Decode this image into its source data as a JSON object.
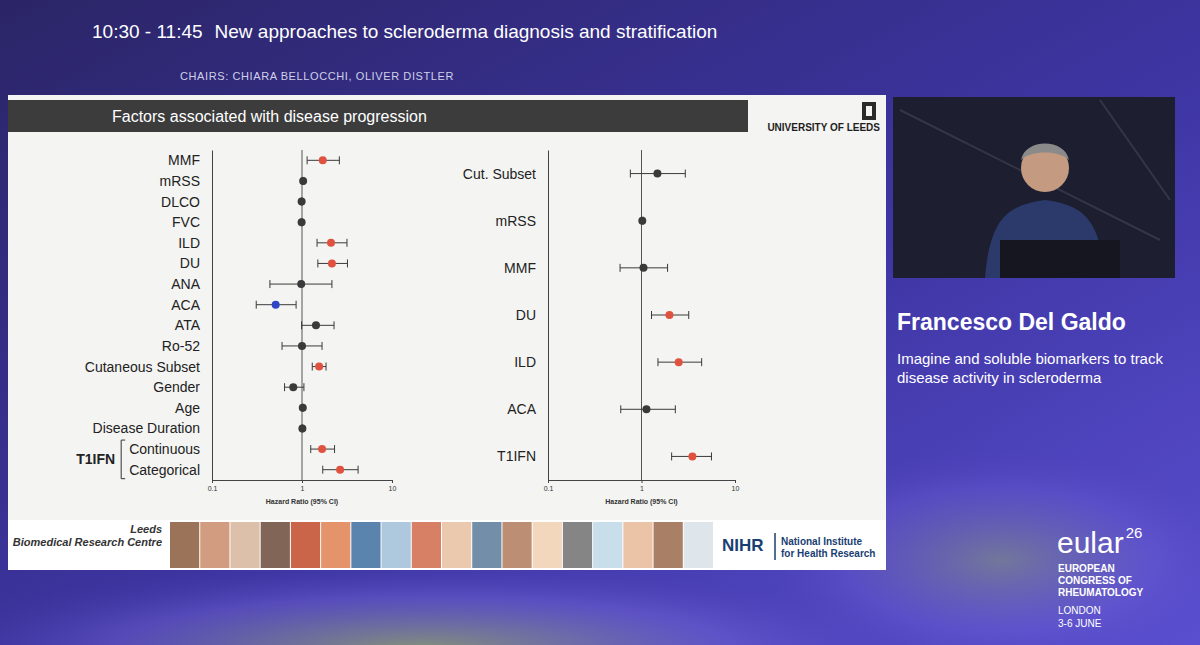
{
  "slide": {
    "session": "10:30 - 11:45",
    "session_title": "New approaches to scleroderma diagnosis and stratification",
    "chairs": "CHAIRS: CHIARA BELLOCCHI, OLIVER DISTLER",
    "panel_title": "Factors associated with disease progression",
    "institution": "UNIVERSITY OF LEEDS",
    "footer_left": [
      "Leeds",
      "Biomedical Research Centre"
    ],
    "footer_logo": "NIHR",
    "footer_logo_text": [
      "National Institute",
      "for Health Research"
    ]
  },
  "speaker": {
    "name": "Francesco Del Galdo",
    "talk_title": "Imagine and soluble biomarkers to track disease activity in scleroderma"
  },
  "congress": {
    "brand": "eular",
    "year": "26",
    "lines": [
      "EUROPEAN",
      "CONGRESS OF",
      "RHEUMATOLOGY"
    ],
    "city": "LONDON",
    "dates": "3-6 JUNE"
  },
  "chart_data": [
    {
      "type": "forest",
      "orientation": "horizontal",
      "log": "x",
      "categories": [
        "MMF",
        "mRSS",
        "DLCO",
        "FVC",
        "ILD",
        "DU",
        "ANA",
        "ACA",
        "ATA",
        "Ro-52",
        "Cutaneous Subset",
        "Gender",
        "Age",
        "Disease Duration",
        "Continuous",
        "Categorical"
      ],
      "values": [
        1.7,
        1.03,
        0.99,
        0.99,
        2.1,
        2.15,
        0.98,
        0.51,
        1.43,
        1.0,
        1.55,
        0.8,
        1.02,
        1.01,
        1.67,
        2.65
      ],
      "ci_low": [
        1.14,
        1.01,
        0.98,
        0.98,
        1.47,
        1.5,
        0.44,
        0.31,
        0.99,
        0.6,
        1.3,
        0.64,
        1.01,
        1.0,
        1.25,
        1.7
      ],
      "ci_high": [
        2.6,
        1.05,
        1.0,
        1.0,
        3.16,
        3.2,
        2.15,
        0.86,
        2.27,
        1.67,
        1.85,
        1.05,
        1.03,
        1.02,
        2.3,
        4.2
      ],
      "colors": [
        "#e0523f",
        "#3a3a3a",
        "#3a3a3a",
        "#3a3a3a",
        "#e0523f",
        "#e0523f",
        "#3a3a3a",
        "#2f45c6",
        "#3a3a3a",
        "#3a3a3a",
        "#e0523f",
        "#3a3a3a",
        "#3a3a3a",
        "#3a3a3a",
        "#e0523f",
        "#e0523f"
      ],
      "groups": [
        {
          "name": "T1IFN",
          "members": [
            "Continuous",
            "Categorical"
          ]
        }
      ],
      "reference_line": 1,
      "x_label": "Hazard Ratio (95% CI)",
      "xlim": [
        0.1,
        10
      ],
      "xticks": [
        0.1,
        1,
        10
      ]
    },
    {
      "type": "forest",
      "orientation": "horizontal",
      "log": "x",
      "categories": [
        "Cut. Subset",
        "mRSS",
        "MMF",
        "DU",
        "ILD",
        "ACA",
        "T1IFN"
      ],
      "values": [
        1.48,
        1.02,
        1.05,
        1.99,
        2.5,
        1.13,
        3.5
      ],
      "ci_low": [
        0.76,
        1.0,
        0.59,
        1.28,
        1.5,
        0.6,
        2.1
      ],
      "ci_high": [
        2.94,
        1.04,
        1.9,
        3.2,
        4.4,
        2.3,
        5.6
      ],
      "colors": [
        "#3a3a3a",
        "#3a3a3a",
        "#3a3a3a",
        "#e0523f",
        "#e0523f",
        "#3a3a3a",
        "#e0523f"
      ],
      "reference_line": 1,
      "x_label": "Hazard Ratio (95% CI)",
      "xlim": [
        0.1,
        10
      ],
      "xticks": [
        0.1,
        1,
        10
      ]
    }
  ]
}
